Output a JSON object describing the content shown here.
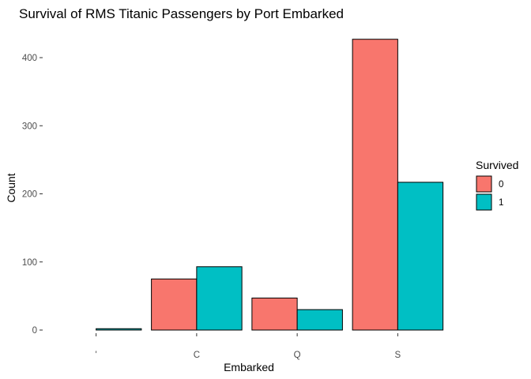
{
  "chart_data": {
    "type": "bar",
    "title": "Survival of RMS Titanic Passengers by Port Embarked",
    "xlabel": "Embarked",
    "ylabel": "Count",
    "categories": [
      "'",
      "C",
      "Q",
      "S"
    ],
    "ylim": [
      0,
      450
    ],
    "yticks": [
      0,
      100,
      200,
      300,
      400
    ],
    "grid": false,
    "legend_position": "right",
    "legend_title": "Survived",
    "series": [
      {
        "name": "0",
        "color": "#F8766D",
        "values": [
          0,
          75,
          47,
          427
        ]
      },
      {
        "name": "1",
        "color": "#00BFC4",
        "values": [
          2,
          93,
          30,
          217
        ]
      }
    ]
  }
}
